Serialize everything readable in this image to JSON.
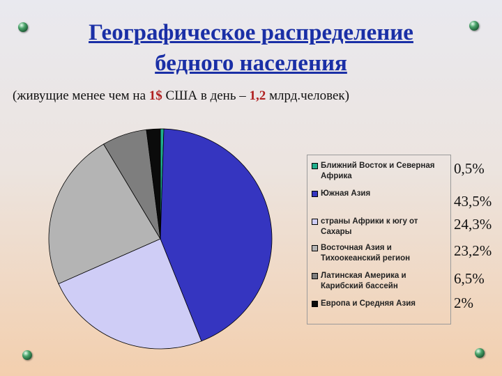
{
  "title_line1": "Географическое распределение",
  "title_line2": "бедного населения",
  "subtitle": {
    "part1": "(живущие менее чем на ",
    "amount": "1$",
    "part2": " США в день – ",
    "count": "1,2",
    "part3": " млрд.человек)"
  },
  "chart_data": {
    "type": "pie",
    "title": "",
    "categories": [
      "Ближний Восток и Северная Африка",
      "Южная Азия",
      "страны Африки к югу от Сахары",
      "Восточная Азия и Тихоокеанский регион",
      "Латинская Америка и Карибский бассейн",
      "Европа и Средняя Азия"
    ],
    "values": [
      0.5,
      43.5,
      24.3,
      23.2,
      6.5,
      2
    ],
    "value_labels": [
      "0,5%",
      "43,5%",
      "24,3%",
      "23,2%",
      "6,5%",
      "2%"
    ],
    "colors": [
      "#1fae8c",
      "#3535c0",
      "#cfcdf6",
      "#b4b4b4",
      "#7e7e7e",
      "#0b0b0b"
    ],
    "legend_position": "right"
  }
}
